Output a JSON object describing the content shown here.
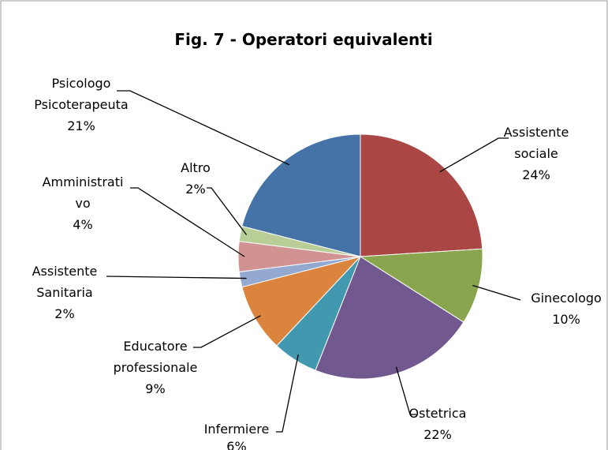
{
  "chart_data": {
    "type": "pie",
    "title": "Fig. 7 - Operatori equivalenti",
    "categories": [
      "Assistente sociale",
      "Ginecologo",
      "Ostetrica",
      "Infermiere",
      "Educatore professionale",
      "Assistente Sanitaria",
      "Amministrativo",
      "Altro",
      "Psicologo Psicoterapeuta"
    ],
    "values": [
      24,
      10,
      22,
      6,
      9,
      2,
      4,
      2,
      21
    ],
    "value_labels": [
      "24%",
      "10%",
      "22%",
      "6%",
      "9%",
      "2%",
      "4%",
      "2%",
      "21%"
    ],
    "colors": [
      "#aa4643",
      "#89a54e",
      "#71588f",
      "#4198af",
      "#db843d",
      "#93a9cf",
      "#d19392",
      "#b9cd96",
      "#4572a7"
    ]
  }
}
